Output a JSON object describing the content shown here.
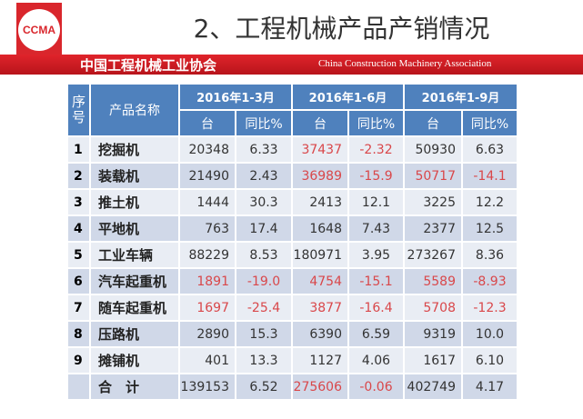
{
  "logo": "CCMA",
  "title": "2、工程机械产品产销情况",
  "band": {
    "cn": "中国工程机械工业协会",
    "en": "China Construction Machinery Association"
  },
  "header": {
    "no": "序号",
    "name": "产品名称",
    "groups": [
      "2016年1-3月",
      "2016年1-6月",
      "2016年1-9月"
    ],
    "unit": "台",
    "yoy": "同比%"
  },
  "colors": {
    "header": "#4f81bd",
    "negative": "#d9474a",
    "band": "#e0242b"
  },
  "rows": [
    {
      "no": "1",
      "name": "挖掘机",
      "v": [
        "20348",
        "6.33",
        "37437",
        "-2.32",
        "50930",
        "6.63"
      ],
      "red": [
        0,
        0,
        1,
        1,
        0,
        0
      ]
    },
    {
      "no": "2",
      "name": "装载机",
      "v": [
        "21490",
        "2.43",
        "36989",
        "-15.9",
        "50717",
        "-14.1"
      ],
      "red": [
        0,
        0,
        1,
        1,
        1,
        1
      ]
    },
    {
      "no": "3",
      "name": "推土机",
      "v": [
        "1444",
        "30.3",
        "2413",
        "12.1",
        "3225",
        "12.2"
      ],
      "red": [
        0,
        0,
        0,
        0,
        0,
        0
      ]
    },
    {
      "no": "4",
      "name": "平地机",
      "v": [
        "763",
        "17.4",
        "1648",
        "7.43",
        "2377",
        "12.5"
      ],
      "red": [
        0,
        0,
        0,
        0,
        0,
        0
      ]
    },
    {
      "no": "5",
      "name": "工业车辆",
      "v": [
        "88229",
        "8.53",
        "180971",
        "3.95",
        "273267",
        "8.36"
      ],
      "red": [
        0,
        0,
        0,
        0,
        0,
        0
      ]
    },
    {
      "no": "6",
      "name": "汽车起重机",
      "v": [
        "1891",
        "-19.0",
        "4754",
        "-15.1",
        "5589",
        "-8.93"
      ],
      "red": [
        1,
        1,
        1,
        1,
        1,
        1
      ]
    },
    {
      "no": "7",
      "name": "随车起重机",
      "v": [
        "1697",
        "-25.4",
        "3877",
        "-16.4",
        "5708",
        "-12.3"
      ],
      "red": [
        1,
        1,
        1,
        1,
        1,
        1
      ]
    },
    {
      "no": "8",
      "name": "压路机",
      "v": [
        "2890",
        "15.3",
        "6390",
        "6.59",
        "9319",
        "10.0"
      ],
      "red": [
        0,
        0,
        0,
        0,
        0,
        0
      ]
    },
    {
      "no": "9",
      "name": "摊铺机",
      "v": [
        "401",
        "13.3",
        "1127",
        "4.06",
        "1617",
        "6.10"
      ],
      "red": [
        0,
        0,
        0,
        0,
        0,
        0
      ]
    },
    {
      "no": "",
      "name": "合　计",
      "v": [
        "139153",
        "6.52",
        "275606",
        "-0.06",
        "402749",
        "4.17"
      ],
      "red": [
        0,
        0,
        1,
        1,
        0,
        0
      ]
    }
  ]
}
